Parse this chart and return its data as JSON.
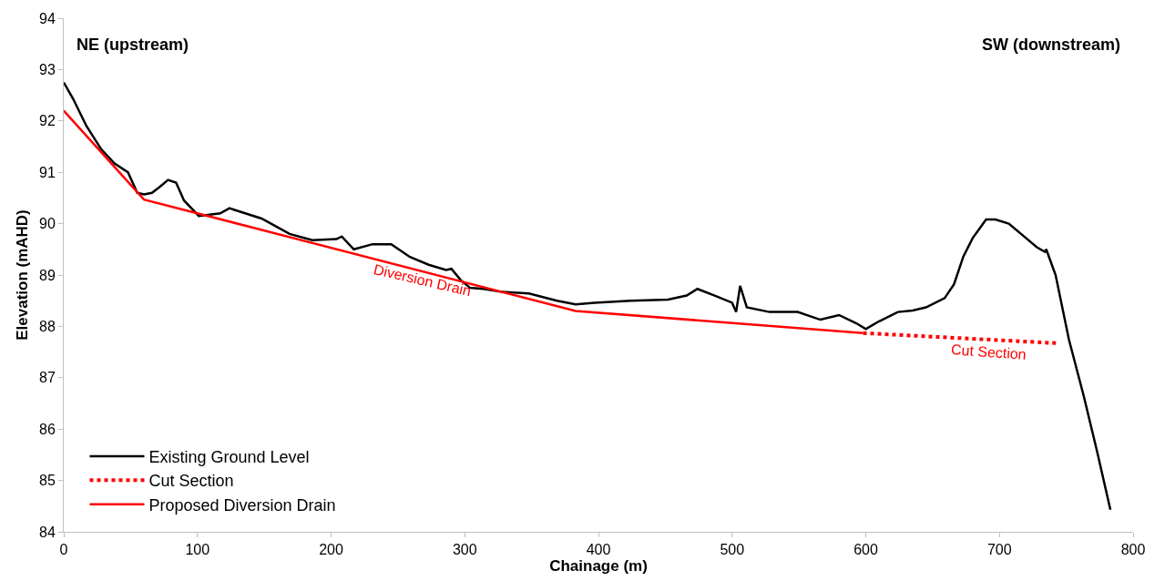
{
  "chart_data": {
    "type": "line",
    "xlabel": "Chainage (m)",
    "ylabel": "Elevation (mAHD)",
    "xlim": [
      0,
      800
    ],
    "xticks": [
      0,
      100,
      200,
      300,
      400,
      500,
      600,
      700,
      800
    ],
    "ylim": [
      84,
      94
    ],
    "yticks": [
      84,
      85,
      86,
      87,
      88,
      89,
      90,
      91,
      92,
      93,
      94
    ],
    "legend": "bottom left",
    "marker": "none",
    "series": [
      {
        "name": "Existing Ground Level",
        "color": "#000000",
        "line_style": "solid",
        "x": [
          0,
          7,
          17,
          28,
          38,
          48,
          55,
          60,
          66,
          72,
          78,
          84,
          90,
          101,
          117,
          124,
          148,
          169,
          186,
          204,
          208,
          217,
          231,
          245,
          259,
          273,
          286,
          290,
          297,
          304,
          314,
          328,
          348,
          369,
          383,
          397,
          424,
          452,
          466,
          474,
          487,
          500,
          503,
          506,
          511,
          528,
          549,
          566,
          580,
          593,
          600,
          604,
          610,
          624,
          635,
          645,
          659,
          666,
          673,
          680,
          690,
          697,
          707,
          718,
          728,
          734,
          735,
          742,
          752,
          763,
          773,
          783
        ],
        "values": [
          92.75,
          92.43,
          91.9,
          91.45,
          91.17,
          91.0,
          90.6,
          90.57,
          90.6,
          90.72,
          90.85,
          90.8,
          90.45,
          90.15,
          90.2,
          90.3,
          90.1,
          89.8,
          89.68,
          89.7,
          89.75,
          89.5,
          89.6,
          89.6,
          89.35,
          89.2,
          89.1,
          89.12,
          88.9,
          88.75,
          88.73,
          88.67,
          88.64,
          88.5,
          88.43,
          88.46,
          88.5,
          88.52,
          88.6,
          88.73,
          88.6,
          88.46,
          88.28,
          88.79,
          88.37,
          88.28,
          88.28,
          88.13,
          88.22,
          88.06,
          87.95,
          88.01,
          88.1,
          88.28,
          88.31,
          88.37,
          88.55,
          88.82,
          89.36,
          89.72,
          90.08,
          90.08,
          90.0,
          89.76,
          89.54,
          89.45,
          89.5,
          89.0,
          87.74,
          86.65,
          85.57,
          84.43
        ]
      },
      {
        "name": "Cut Section",
        "color": "#ff0000",
        "line_style": "dotted",
        "x": [
          598,
          745
        ],
        "values": [
          87.87,
          87.67
        ]
      },
      {
        "name": "Proposed Diversion Drain",
        "color": "#ff0000",
        "line_style": "solid",
        "x": [
          0,
          60,
          383,
          598
        ],
        "values": [
          92.2,
          90.47,
          88.3,
          87.87
        ]
      }
    ],
    "annotations": [
      "NE (upstream)",
      "SW (downstream)",
      "Diversion Drain",
      "Cut Section"
    ]
  }
}
